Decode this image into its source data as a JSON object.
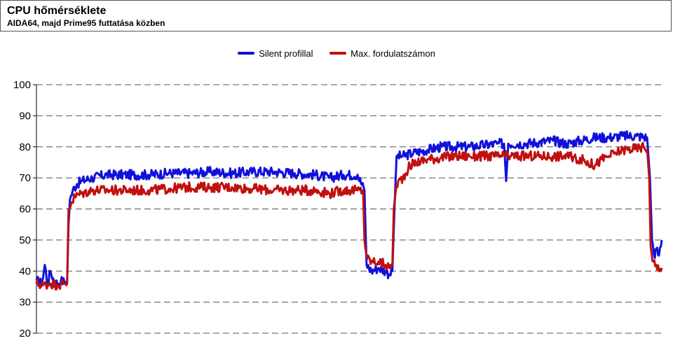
{
  "header": {
    "title": "CPU hőmérséklete",
    "subtitle": "AIDA64, majd Prime95 futtatása közben"
  },
  "chart_data": {
    "type": "line",
    "title": "CPU hőmérséklete",
    "subtitle": "AIDA64, majd Prime95 futtatása közben",
    "xlabel": "",
    "ylabel": "",
    "ylim": [
      20,
      100
    ],
    "yticks": [
      20,
      30,
      40,
      50,
      60,
      70,
      80,
      90,
      100
    ],
    "grid": "horizontal-dashed",
    "legend_position": "top-center",
    "x_range": [
      0,
      900
    ],
    "series": [
      {
        "name": "Silent profillal",
        "color": "#1010dd",
        "points": [
          [
            0,
            37
          ],
          [
            8,
            36
          ],
          [
            12,
            42
          ],
          [
            16,
            36
          ],
          [
            20,
            40
          ],
          [
            25,
            37
          ],
          [
            30,
            36
          ],
          [
            35,
            37
          ],
          [
            40,
            36.5
          ],
          [
            44,
            37
          ],
          [
            46,
            55
          ],
          [
            48,
            63
          ],
          [
            52,
            66
          ],
          [
            58,
            68
          ],
          [
            65,
            69
          ],
          [
            80,
            70
          ],
          [
            100,
            71
          ],
          [
            130,
            71
          ],
          [
            160,
            71
          ],
          [
            190,
            71.5
          ],
          [
            220,
            71.5
          ],
          [
            250,
            72
          ],
          [
            280,
            71.5
          ],
          [
            310,
            72
          ],
          [
            340,
            72
          ],
          [
            370,
            71.5
          ],
          [
            400,
            71
          ],
          [
            420,
            70
          ],
          [
            440,
            71
          ],
          [
            460,
            71
          ],
          [
            470,
            66
          ],
          [
            473,
            42
          ],
          [
            480,
            40
          ],
          [
            490,
            41
          ],
          [
            500,
            40
          ],
          [
            505,
            39
          ],
          [
            510,
            40
          ],
          [
            513,
            60
          ],
          [
            516,
            77
          ],
          [
            525,
            77
          ],
          [
            540,
            78
          ],
          [
            560,
            79
          ],
          [
            580,
            80
          ],
          [
            600,
            80
          ],
          [
            620,
            80
          ],
          [
            640,
            80.5
          ],
          [
            660,
            81
          ],
          [
            670,
            81
          ],
          [
            673,
            69
          ],
          [
            676,
            81
          ],
          [
            700,
            81
          ],
          [
            720,
            81.5
          ],
          [
            740,
            82
          ],
          [
            760,
            81
          ],
          [
            780,
            82
          ],
          [
            800,
            83
          ],
          [
            820,
            83
          ],
          [
            840,
            83.5
          ],
          [
            860,
            83.5
          ],
          [
            875,
            83
          ],
          [
            879,
            70
          ],
          [
            882,
            50
          ],
          [
            885,
            45
          ],
          [
            888,
            47
          ],
          [
            892,
            45
          ],
          [
            896,
            50
          ]
        ]
      },
      {
        "name": "Max. fordulatszámon",
        "color": "#c01010",
        "points": [
          [
            0,
            36
          ],
          [
            10,
            35.5
          ],
          [
            20,
            36
          ],
          [
            30,
            35.5
          ],
          [
            40,
            36
          ],
          [
            44,
            36
          ],
          [
            46,
            60
          ],
          [
            50,
            62
          ],
          [
            55,
            64
          ],
          [
            65,
            65
          ],
          [
            80,
            66
          ],
          [
            100,
            66
          ],
          [
            130,
            66
          ],
          [
            160,
            66
          ],
          [
            190,
            66.5
          ],
          [
            220,
            67
          ],
          [
            250,
            67
          ],
          [
            280,
            67
          ],
          [
            310,
            66.5
          ],
          [
            340,
            66
          ],
          [
            370,
            66
          ],
          [
            400,
            66
          ],
          [
            420,
            65
          ],
          [
            440,
            66
          ],
          [
            460,
            66
          ],
          [
            468,
            66
          ],
          [
            470,
            50
          ],
          [
            474,
            44
          ],
          [
            480,
            43
          ],
          [
            490,
            43
          ],
          [
            500,
            42
          ],
          [
            505,
            41
          ],
          [
            510,
            42
          ],
          [
            512,
            60
          ],
          [
            516,
            68
          ],
          [
            525,
            70
          ],
          [
            535,
            74
          ],
          [
            545,
            75
          ],
          [
            560,
            76
          ],
          [
            580,
            76.5
          ],
          [
            600,
            77
          ],
          [
            620,
            77
          ],
          [
            640,
            77
          ],
          [
            660,
            77
          ],
          [
            680,
            77
          ],
          [
            700,
            77
          ],
          [
            720,
            77
          ],
          [
            740,
            77
          ],
          [
            760,
            77
          ],
          [
            780,
            76
          ],
          [
            800,
            74
          ],
          [
            810,
            76
          ],
          [
            820,
            77
          ],
          [
            830,
            78
          ],
          [
            840,
            79
          ],
          [
            860,
            79.5
          ],
          [
            870,
            80
          ],
          [
            875,
            79
          ],
          [
            878,
            70
          ],
          [
            880,
            48
          ],
          [
            884,
            43
          ],
          [
            888,
            42
          ],
          [
            892,
            40
          ],
          [
            896,
            41
          ]
        ]
      }
    ]
  }
}
